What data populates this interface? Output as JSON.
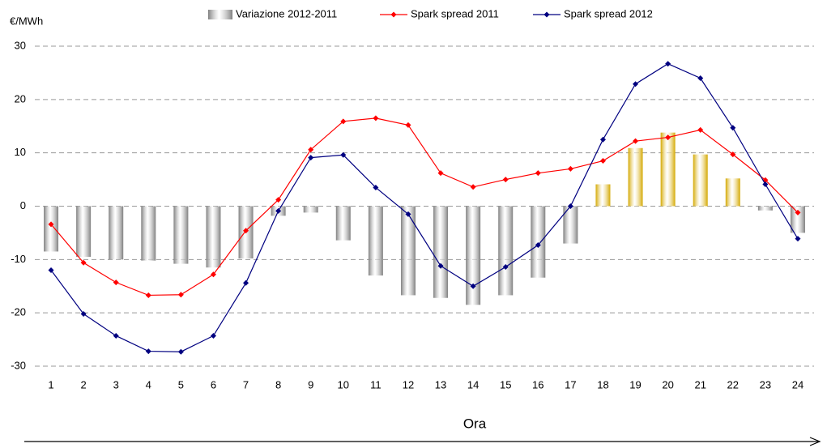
{
  "chart_data": {
    "type": "bar",
    "y_unit": "€/MWh",
    "x_label": "Ora",
    "categories": [
      "1",
      "2",
      "3",
      "4",
      "5",
      "6",
      "7",
      "8",
      "9",
      "10",
      "11",
      "12",
      "13",
      "14",
      "15",
      "16",
      "17",
      "18",
      "19",
      "20",
      "21",
      "22",
      "23",
      "24"
    ],
    "series": [
      {
        "name": "Variazione 2012-2011",
        "type": "bar",
        "color": "#7f7f7f",
        "positive_color": "#d4a800",
        "values": [
          -8.5,
          -9.5,
          -10,
          -10.2,
          -10.8,
          -11.5,
          -9.8,
          -1.8,
          -1.2,
          -6.4,
          -13,
          -16.7,
          -17.2,
          -18.5,
          -16.7,
          -13.4,
          -7,
          4.1,
          10.9,
          13.8,
          9.7,
          5.2,
          -0.8,
          -5
        ]
      },
      {
        "name": "Spark spread 2011",
        "type": "line",
        "color": "#ff0000",
        "values": [
          -3.4,
          -10.6,
          -14.3,
          -16.7,
          -16.6,
          -12.8,
          -4.6,
          1.2,
          10.6,
          15.9,
          16.5,
          15.2,
          6.2,
          3.6,
          5,
          6.2,
          7,
          8.5,
          12.2,
          12.9,
          14.3,
          9.7,
          4.9,
          -1.2
        ]
      },
      {
        "name": "Spark spread 2012",
        "type": "line",
        "color": "#000080",
        "values": [
          -12,
          -20.2,
          -24.3,
          -27.2,
          -27.3,
          -24.3,
          -14.4,
          -0.9,
          9.1,
          9.6,
          3.5,
          -1.5,
          -11.2,
          -15,
          -11.4,
          -7.3,
          0,
          12.5,
          22.9,
          26.7,
          24,
          14.7,
          4.1,
          -6.1
        ]
      }
    ],
    "ylim": [
      -30,
      30
    ],
    "yticks": [
      -30,
      -20,
      -10,
      0,
      10,
      20,
      30
    ],
    "grid": true
  }
}
